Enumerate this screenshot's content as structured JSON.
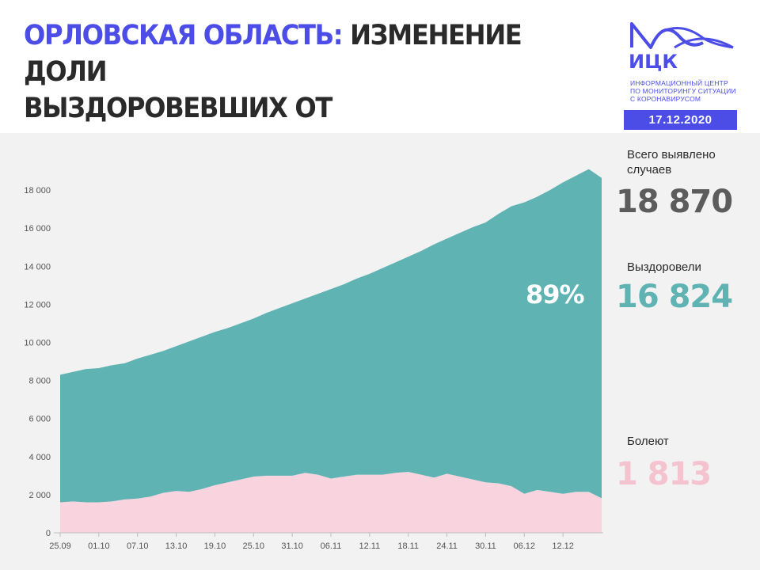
{
  "header": {
    "title_region": "ОРЛОВСКАЯ ОБЛАСТЬ:",
    "title_rest_line1": "ИЗМЕНЕНИЕ ДОЛИ",
    "title_line2": "ВЫЗДОРОВЕВШИХ ОТ КОРОНАВИРУСА",
    "accent_color": "#4b4de6"
  },
  "logo": {
    "abbr": "ИЦК",
    "line1": "ИНФОРМАЦИОННЫЙ ЦЕНТР",
    "line2": "ПО МОНИТОРИНГУ СИТУАЦИИ",
    "line3": "С КОРОНАВИРУСОМ",
    "date": "17.12.2020"
  },
  "stats": {
    "total_label": "Всего выявлено случаев",
    "total_value": "18 870",
    "total_color": "#5c5c5c",
    "recovered_label": "Выздоровели",
    "recovered_value": "16 824",
    "recovered_color": "#5fb3b3",
    "sick_label": "Болеют",
    "sick_value": "1 813",
    "sick_color": "#f4c3cf"
  },
  "chart_data": {
    "type": "area",
    "stacked": true,
    "annotation": "89%",
    "x_ticks": [
      "25.09",
      "01.10",
      "07.10",
      "13.10",
      "19.10",
      "25.10",
      "31.10",
      "06.11",
      "12.11",
      "18.11",
      "24.11",
      "30.11",
      "06.12",
      "12.12"
    ],
    "y_ticks": [
      "0",
      "2 000",
      "4 000",
      "6 000",
      "8 000",
      "10 000",
      "12 000",
      "14 000",
      "16 000",
      "18 000"
    ],
    "ylim": [
      0,
      19000
    ],
    "grid": false,
    "x": [
      "25.09",
      "27.09",
      "29.09",
      "01.10",
      "03.10",
      "05.10",
      "07.10",
      "09.10",
      "11.10",
      "13.10",
      "15.10",
      "17.10",
      "19.10",
      "21.10",
      "23.10",
      "25.10",
      "27.10",
      "29.10",
      "31.10",
      "02.11",
      "04.11",
      "06.11",
      "08.11",
      "10.11",
      "12.11",
      "14.11",
      "16.11",
      "18.11",
      "20.11",
      "22.11",
      "24.11",
      "26.11",
      "28.11",
      "30.11",
      "02.12",
      "04.12",
      "06.12",
      "08.12",
      "10.12",
      "12.12",
      "14.12",
      "16.12",
      "17.12"
    ],
    "series": [
      {
        "role": "sick",
        "color": "#f9d3de",
        "values": [
          1600,
          1650,
          1600,
          1600,
          1650,
          1750,
          1800,
          1900,
          2100,
          2200,
          2150,
          2300,
          2500,
          2650,
          2800,
          2950,
          3000,
          3000,
          3000,
          3150,
          3050,
          2850,
          2950,
          3050,
          3050,
          3050,
          3150,
          3200,
          3050,
          2900,
          3100,
          2950,
          2800,
          2650,
          2600,
          2450,
          2050,
          2250,
          2150,
          2050,
          2150,
          2150,
          1813
        ]
      },
      {
        "role": "recovered",
        "color": "#5fb3b3",
        "values": [
          6700,
          6800,
          7000,
          7050,
          7150,
          7150,
          7350,
          7450,
          7450,
          7600,
          7900,
          8000,
          8050,
          8100,
          8200,
          8300,
          8550,
          8800,
          9050,
          9150,
          9500,
          9950,
          10100,
          10300,
          10550,
          10850,
          11050,
          11300,
          11750,
          12250,
          12350,
          12800,
          13250,
          13650,
          14150,
          14700,
          15300,
          15400,
          15850,
          16350,
          16600,
          16950,
          16824
        ]
      }
    ]
  }
}
